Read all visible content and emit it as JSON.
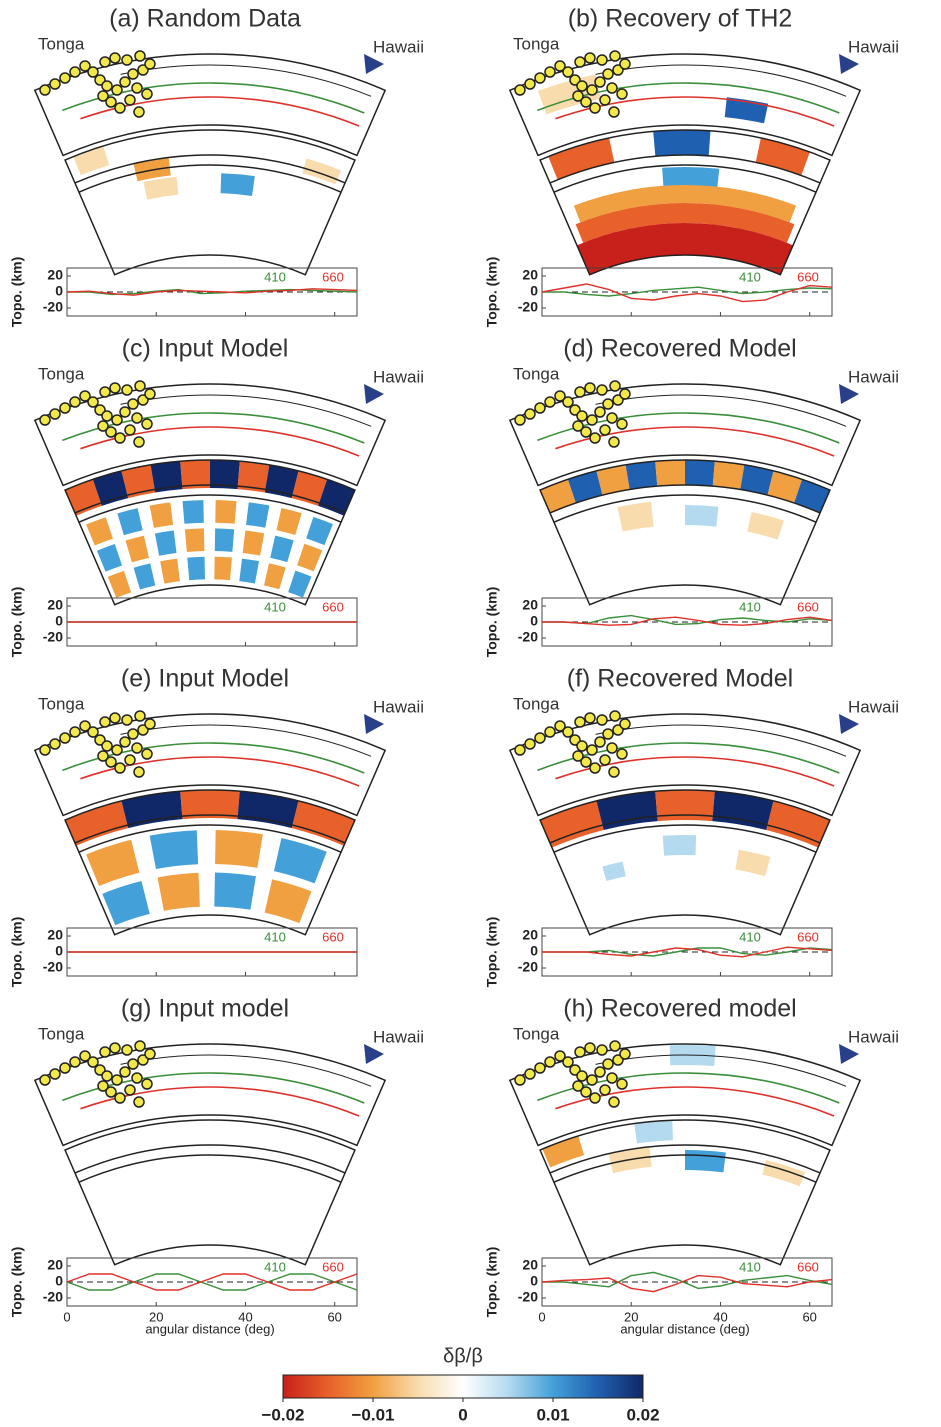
{
  "panels": [
    {
      "title": "(a) Random Data",
      "series": [
        {
          "name": "410",
          "color": "#3a8f3a",
          "values": [
            0,
            0,
            -3,
            -2,
            1,
            3,
            -2,
            -1,
            1,
            2,
            3,
            2,
            1,
            0
          ]
        },
        {
          "name": "660",
          "color": "#e0302a",
          "values": [
            0,
            1,
            -2,
            -4,
            0,
            2,
            1,
            0,
            -1,
            1,
            2,
            4,
            3,
            2
          ]
        }
      ]
    },
    {
      "title": "(b) Recovery of TH2",
      "series": [
        {
          "name": "410",
          "color": "#3a8f3a",
          "values": [
            0,
            0,
            -3,
            -5,
            -2,
            2,
            4,
            6,
            2,
            -2,
            0,
            3,
            5,
            4
          ]
        },
        {
          "name": "660",
          "color": "#e0302a",
          "values": [
            0,
            5,
            10,
            3,
            -8,
            -10,
            -5,
            -2,
            -5,
            -12,
            -10,
            0,
            8,
            6
          ]
        }
      ]
    },
    {
      "title": "(c) Input Model",
      "series": [
        {
          "name": "410",
          "color": "#3a8f3a",
          "values": [
            0,
            0,
            0,
            0,
            0,
            0,
            0,
            0,
            0,
            0,
            0,
            0,
            0,
            0
          ]
        },
        {
          "name": "660",
          "color": "#e0302a",
          "values": [
            0,
            0,
            0,
            0,
            0,
            0,
            0,
            0,
            0,
            0,
            0,
            0,
            0,
            0
          ]
        }
      ]
    },
    {
      "title": "(d) Recovered Model",
      "series": [
        {
          "name": "410",
          "color": "#3a8f3a",
          "values": [
            0,
            0,
            -2,
            5,
            8,
            3,
            -3,
            -2,
            3,
            5,
            2,
            0,
            4,
            2
          ]
        },
        {
          "name": "660",
          "color": "#e0302a",
          "values": [
            0,
            0,
            -2,
            -4,
            -3,
            4,
            6,
            2,
            -3,
            -4,
            -2,
            3,
            6,
            2
          ]
        }
      ]
    },
    {
      "title": "(e) Input Model",
      "series": [
        {
          "name": "410",
          "color": "#3a8f3a",
          "values": [
            0,
            0,
            0,
            0,
            0,
            0,
            0,
            0,
            0,
            0,
            0,
            0,
            0,
            0
          ]
        },
        {
          "name": "660",
          "color": "#e0302a",
          "values": [
            0,
            0,
            0,
            0,
            0,
            0,
            0,
            0,
            0,
            0,
            0,
            0,
            0,
            0
          ]
        }
      ]
    },
    {
      "title": "(f) Recovered Model",
      "series": [
        {
          "name": "410",
          "color": "#3a8f3a",
          "values": [
            0,
            0,
            0,
            2,
            -3,
            -5,
            0,
            5,
            5,
            -2,
            -4,
            0,
            5,
            3
          ]
        },
        {
          "name": "660",
          "color": "#e0302a",
          "values": [
            0,
            0,
            0,
            -3,
            -5,
            0,
            5,
            3,
            -4,
            -6,
            0,
            6,
            4,
            2
          ]
        }
      ]
    },
    {
      "title": "(g) Input model",
      "series": [
        {
          "name": "410",
          "color": "#3a8f3a",
          "values": [
            0,
            -10,
            -10,
            0,
            10,
            10,
            0,
            -10,
            -10,
            0,
            10,
            10,
            0,
            -10
          ]
        },
        {
          "name": "660",
          "color": "#e0302a",
          "values": [
            0,
            10,
            10,
            0,
            -10,
            -10,
            0,
            10,
            10,
            0,
            -10,
            -10,
            0,
            10
          ]
        }
      ]
    },
    {
      "title": "(h) Recovered model",
      "series": [
        {
          "name": "410",
          "color": "#3a8f3a",
          "values": [
            0,
            0,
            -3,
            -6,
            8,
            12,
            4,
            -8,
            -5,
            2,
            5,
            8,
            2,
            -3
          ]
        },
        {
          "name": "660",
          "color": "#e0302a",
          "values": [
            0,
            2,
            3,
            5,
            -8,
            -12,
            -3,
            8,
            6,
            -2,
            -4,
            -6,
            0,
            3
          ]
        }
      ]
    }
  ],
  "left_label": "Tonga",
  "right_label": "Hawaii",
  "topo_axis": {
    "y_label": "Topo. (km)",
    "ylim": [
      -30,
      30
    ],
    "yticks": [
      20,
      0,
      -20
    ],
    "x": [
      0,
      5,
      10,
      15,
      20,
      25,
      30,
      35,
      40,
      45,
      50,
      55,
      60,
      65
    ]
  },
  "x_axis": {
    "label": "angular distance (deg)",
    "xlim": [
      0,
      65
    ],
    "xticks": [
      0,
      20,
      40,
      60
    ]
  },
  "colorbar": {
    "title": "δβ/β",
    "lim": [
      -0.02,
      0.02
    ],
    "ticks": [
      {
        "value": -0.02,
        "label": "−0.02"
      },
      {
        "value": -0.01,
        "label": "−0.01"
      },
      0,
      0.01,
      0.02
    ],
    "colors": [
      "#c8201a",
      "#e8602a",
      "#f0a040",
      "#f8dcae",
      "#ffffff",
      "#b4daf0",
      "#44a0d8",
      "#2060b0",
      "#102868"
    ]
  }
}
